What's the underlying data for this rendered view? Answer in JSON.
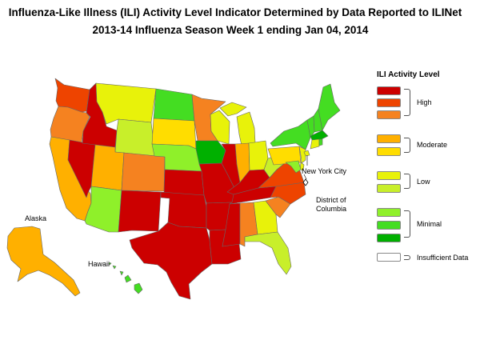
{
  "title_line1": "Influenza-Like Illness (ILI) Activity Level Indicator Determined by Data Reported to ILINet",
  "title_line2": "2013-14  Influenza Season Week  1 ending Jan 04, 2014",
  "legend": {
    "title": "ILI Activity Level",
    "levels": [
      {
        "level": 10,
        "color": "#cc0000"
      },
      {
        "level": 9,
        "color": "#ee4400"
      },
      {
        "level": 8,
        "color": "#f58220"
      },
      {
        "level": 7,
        "color": "#ffb000"
      },
      {
        "level": 6,
        "color": "#ffdd00"
      },
      {
        "level": 5,
        "color": "#e8f20a"
      },
      {
        "level": 4,
        "color": "#c8ef2a"
      },
      {
        "level": 3,
        "color": "#8ff02a"
      },
      {
        "level": 2,
        "color": "#44dd22"
      },
      {
        "level": 1,
        "color": "#00b000"
      }
    ],
    "groups": [
      "High",
      "Moderate",
      "Low",
      "Minimal",
      "Insufficient Data"
    ],
    "insufficient_color": "#ffffff"
  },
  "labels": {
    "nyc": "New York City",
    "dc_line1": "District of",
    "dc_line2": "Columbia",
    "alaska": "Alaska",
    "hawaii": "Hawaii"
  },
  "states": {
    "WA": 9,
    "OR": 8,
    "CA": 7,
    "NV": 10,
    "ID": 10,
    "MT": 5,
    "WY": 4,
    "UT": 7,
    "AZ": 3,
    "CO": 8,
    "NM": 10,
    "ND": 2,
    "SD": 6,
    "NE": 3,
    "KS": 10,
    "OK": 10,
    "TX": 10,
    "MN": 8,
    "IA": 1,
    "MO": 10,
    "AR": 10,
    "LA": 10,
    "WI": 5,
    "IL": 10,
    "MS": 10,
    "MI": 5,
    "IN": 7,
    "KY": 10,
    "TN": 10,
    "AL": 8,
    "OH": 5,
    "GA": 5,
    "FL": 4,
    "SC": 8,
    "NC": 9,
    "VA": 9,
    "WV": 4,
    "PA": 6,
    "NY": 2,
    "ME": 2,
    "NH": 2,
    "VT": 2,
    "MA": 1,
    "CT": 5,
    "RI": 2,
    "NJ": 5,
    "DE": 5,
    "MD": 3,
    "AK": 7,
    "HI": 2,
    "NYC": 5,
    "DC": 0
  }
}
